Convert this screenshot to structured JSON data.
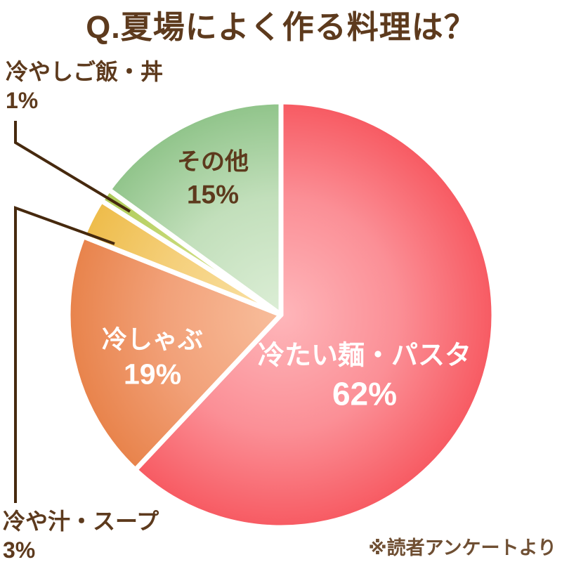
{
  "chart_data": {
    "type": "pie",
    "title": "Q.夏場によく作る料理は？",
    "source_note": "※読者アンケートより",
    "unit": "%",
    "start_angle_deg": 0,
    "direction": "clockwise",
    "total": 100,
    "slices": [
      {
        "label": "冷たい麺・パスタ",
        "value": 62,
        "pct_label": "62%",
        "colors": {
          "inner": "#FEB6BA",
          "mid": "#FB8F96",
          "outer": "#F75A62"
        },
        "label_placement": "inside",
        "label_color": "#FFFFFF"
      },
      {
        "label": "冷しゃぶ",
        "value": 19,
        "pct_label": "19%",
        "colors": {
          "inner": "#F8BE9C",
          "mid": "#F2A179",
          "outer": "#E8834B"
        },
        "label_placement": "inside",
        "label_color": "#FFFFFF"
      },
      {
        "label": "冷や汁・スープ",
        "value": 3,
        "pct_label": "3%",
        "colors": {
          "inner": "#F9E2A8",
          "mid": "#F5D07C",
          "outer": "#EEBC4A"
        },
        "label_placement": "callout-bottom-left",
        "label_color": "#5D3A1D"
      },
      {
        "label": "冷やしご飯・丼",
        "value": 1,
        "pct_label": "1%",
        "colors": {
          "inner": "#D8E494",
          "mid": "#C8DA79",
          "outer": "#AECB58"
        },
        "label_placement": "callout-top-left",
        "label_color": "#5D3A1D"
      },
      {
        "label": "その他",
        "value": 15,
        "pct_label": "15%",
        "colors": {
          "inner": "#DCEED6",
          "mid": "#C2DFBB",
          "outer": "#90C48A"
        },
        "label_placement": "inside",
        "label_color": "#5D3A1D"
      }
    ],
    "styles": {
      "separator_color": "#FFFFFF",
      "callout_line_color": "#46290E",
      "title_color": "#5D3A1D",
      "footnote_color": "#6F4F33"
    }
  }
}
